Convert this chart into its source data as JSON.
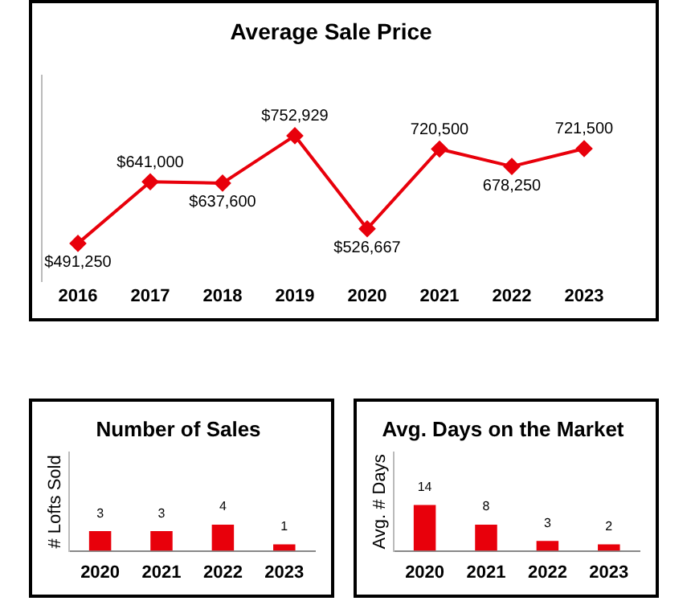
{
  "chart_data": [
    {
      "type": "line",
      "title": "Average Sale Price",
      "categories": [
        "2016",
        "2017",
        "2018",
        "2019",
        "2020",
        "2021",
        "2022",
        "2023"
      ],
      "color": "#e8000b",
      "marker": "diamond",
      "tick_labels": "x",
      "values": [
        491250,
        641000,
        637600,
        752929,
        526667,
        720500,
        678250,
        721500
      ],
      "value_labels": [
        "$491,250",
        "$641,000",
        "$637,600",
        "$752,929",
        "$526,667",
        "720,500",
        "678,250",
        "721,500"
      ]
    },
    {
      "type": "bar",
      "title": "Number of Sales",
      "ylabel": "# Lofts Sold",
      "categories": [
        "2020",
        "2021",
        "2022",
        "2023"
      ],
      "color": "#e8000b",
      "tick_labels": "x",
      "data_labels": true,
      "values": [
        3,
        3,
        4,
        1
      ]
    },
    {
      "type": "bar",
      "title": "Avg. Days on the Market",
      "ylabel": "Avg. # Days",
      "categories": [
        "2020",
        "2021",
        "2022",
        "2023"
      ],
      "color": "#e8000b",
      "tick_labels": "x",
      "data_labels": true,
      "values": [
        14,
        8,
        3,
        2
      ]
    }
  ]
}
